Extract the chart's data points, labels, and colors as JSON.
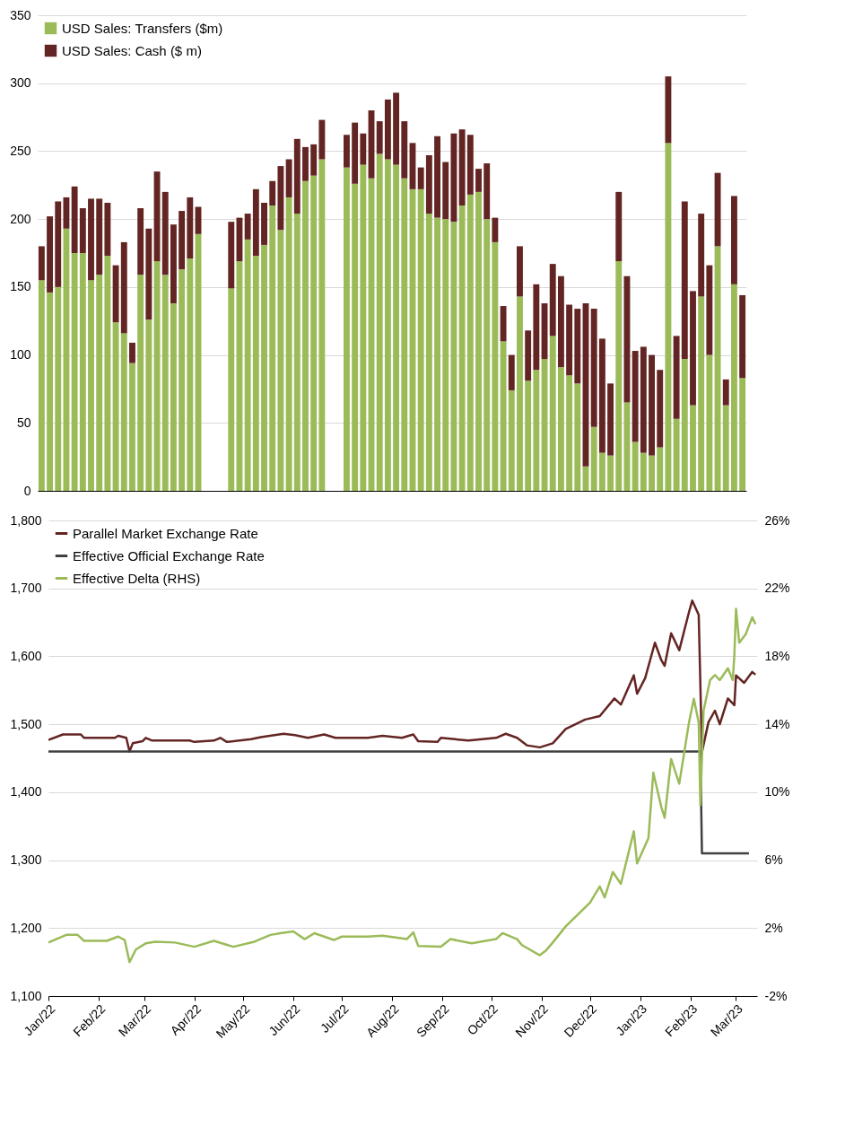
{
  "chart_data": [
    {
      "type": "bar",
      "stacked": true,
      "legend": "top left",
      "grid": "y",
      "ylim": [
        0,
        350
      ],
      "yticks": [
        0,
        50,
        100,
        150,
        200,
        250,
        300,
        350
      ],
      "categories": [
        null,
        null,
        null,
        null,
        null,
        null,
        null,
        null,
        null,
        null,
        null,
        null,
        null,
        null,
        null,
        null,
        null,
        null,
        null,
        null,
        null,
        null,
        null,
        null,
        null,
        null,
        null,
        null,
        null,
        null,
        null,
        null,
        null,
        null,
        null,
        null,
        null,
        null,
        null,
        null,
        null,
        null,
        null,
        null,
        null,
        null,
        null,
        null,
        null,
        null,
        null,
        null,
        null,
        null,
        null,
        null,
        null,
        null,
        null,
        null,
        null,
        null,
        null,
        null,
        null,
        null,
        null,
        null,
        null,
        null,
        null,
        null,
        null,
        null,
        null,
        null,
        null,
        null,
        null,
        null,
        null,
        null,
        null,
        null,
        null,
        null
      ],
      "series": [
        {
          "name": "USD Sales: Transfers ($m)",
          "color": "#9bbb59",
          "values": [
            155,
            146,
            150,
            193,
            175,
            175,
            155,
            159,
            173,
            124,
            116,
            94,
            159,
            126,
            169,
            159,
            138,
            163,
            171,
            189,
            null,
            null,
            null,
            149,
            169,
            185,
            173,
            181,
            210,
            192,
            216,
            204,
            228,
            232,
            244,
            null,
            null,
            238,
            226,
            240,
            230,
            248,
            244,
            240,
            230,
            222,
            222,
            204,
            201,
            200,
            198,
            210,
            218,
            220,
            200,
            183,
            110,
            74,
            143,
            81,
            89,
            97,
            114,
            91,
            85,
            79,
            18,
            47,
            28,
            26,
            169,
            65,
            36,
            28,
            26,
            32,
            256,
            53,
            97,
            63,
            143,
            100,
            180,
            63,
            152,
            83
          ]
        },
        {
          "name": "USD Sales: Cash ($ m)",
          "color": "#632523",
          "values": [
            25,
            56,
            63,
            23,
            49,
            33,
            60,
            56,
            39,
            42,
            67,
            15,
            49,
            67,
            66,
            61,
            58,
            43,
            45,
            20,
            null,
            null,
            null,
            49,
            32,
            19,
            49,
            31,
            18,
            47,
            28,
            55,
            25,
            23,
            29,
            null,
            null,
            24,
            45,
            23,
            50,
            24,
            44,
            53,
            42,
            34,
            16,
            43,
            60,
            42,
            65,
            56,
            44,
            17,
            41,
            18,
            26,
            26,
            37,
            37,
            63,
            41,
            53,
            67,
            52,
            55,
            120,
            87,
            84,
            53,
            51,
            93,
            67,
            78,
            74,
            57,
            49,
            61,
            116,
            84,
            61,
            66,
            54,
            19,
            65,
            61
          ]
        }
      ]
    },
    {
      "type": "line",
      "legend": "top left",
      "grid": "y",
      "xlim": [
        "2022-01-01",
        "2023-03-14"
      ],
      "xticks": [
        {
          "value": "2022-01-01",
          "label": "Jan/22"
        },
        {
          "value": "2022-02-01",
          "label": "Feb/22"
        },
        {
          "value": "2022-03-01",
          "label": "Mar/22"
        },
        {
          "value": "2022-04-01",
          "label": "Apr/22"
        },
        {
          "value": "2022-05-01",
          "label": "May/22"
        },
        {
          "value": "2022-06-01",
          "label": "Jun/22"
        },
        {
          "value": "2022-07-01",
          "label": "Jul/22"
        },
        {
          "value": "2022-08-01",
          "label": "Aug/22"
        },
        {
          "value": "2022-09-01",
          "label": "Sep/22"
        },
        {
          "value": "2022-10-01",
          "label": "Oct/22"
        },
        {
          "value": "2022-11-01",
          "label": "Nov/22"
        },
        {
          "value": "2022-12-01",
          "label": "Dec/22"
        },
        {
          "value": "2023-01-01",
          "label": "Jan/23"
        },
        {
          "value": "2023-02-01",
          "label": "Feb/23"
        },
        {
          "value": "2023-03-01",
          "label": "Mar/23"
        }
      ],
      "ylim": [
        1100,
        1800
      ],
      "yticks": [
        {
          "value": 1100,
          "label": "1,100"
        },
        {
          "value": 1200,
          "label": "1,200"
        },
        {
          "value": 1300,
          "label": "1,300"
        },
        {
          "value": 1400,
          "label": "1,400"
        },
        {
          "value": 1500,
          "label": "1,500"
        },
        {
          "value": 1600,
          "label": "1,600"
        },
        {
          "value": 1700,
          "label": "1,700"
        },
        {
          "value": 1800,
          "label": "1,800"
        }
      ],
      "y2lim": [
        -2,
        26
      ],
      "y2ticks": [
        {
          "value": -2,
          "label": "-2%"
        },
        {
          "value": 2,
          "label": "2%"
        },
        {
          "value": 6,
          "label": "6%"
        },
        {
          "value": 10,
          "label": "10%"
        },
        {
          "value": 14,
          "label": "14%"
        },
        {
          "value": 18,
          "label": "18%"
        },
        {
          "value": 22,
          "label": "22%"
        },
        {
          "value": 26,
          "label": "26%"
        }
      ],
      "series": [
        {
          "name": "Parallel Market Exchange Rate",
          "color": "#632523",
          "x": [
            "2022-01-01",
            "2022-01-10",
            "2022-01-21",
            "2022-01-23",
            "2022-02-11",
            "2022-02-13",
            "2022-02-18",
            "2022-02-20",
            "2022-02-22",
            "2022-02-28",
            "2022-03-02",
            "2022-03-06",
            "2022-03-29",
            "2022-04-01",
            "2022-04-13",
            "2022-04-17",
            "2022-04-21",
            "2022-05-06",
            "2022-05-12",
            "2022-05-26",
            "2022-06-02",
            "2022-06-10",
            "2022-06-20",
            "2022-06-27",
            "2022-07-17",
            "2022-07-26",
            "2022-08-07",
            "2022-08-14",
            "2022-08-17",
            "2022-08-29",
            "2022-08-31",
            "2022-09-17",
            "2022-10-04",
            "2022-10-10",
            "2022-10-17",
            "2022-10-23",
            "2022-10-31",
            "2022-11-08",
            "2022-11-16",
            "2022-11-28",
            "2022-12-07",
            "2022-12-16",
            "2022-12-20",
            "2022-12-28",
            "2022-12-30",
            "2023-01-04",
            "2023-01-10",
            "2023-01-14",
            "2023-01-16",
            "2023-01-20",
            "2023-01-25",
            "2023-01-31",
            "2023-02-02",
            "2023-02-06",
            "2023-02-08",
            "2023-02-12",
            "2023-02-16",
            "2023-02-19",
            "2023-02-24",
            "2023-02-28",
            "2023-03-01",
            "2023-03-06",
            "2023-03-11",
            "2023-03-13"
          ],
          "values": [
            1477,
            1485,
            1485,
            1480,
            1480,
            1483,
            1480,
            1460,
            1472,
            1475,
            1480,
            1476,
            1476,
            1474,
            1476,
            1480,
            1474,
            1478,
            1481,
            1486,
            1484,
            1480,
            1485,
            1480,
            1480,
            1483,
            1480,
            1485,
            1475,
            1474,
            1480,
            1476,
            1480,
            1486,
            1480,
            1469,
            1466,
            1472,
            1493,
            1507,
            1512,
            1538,
            1529,
            1572,
            1545,
            1568,
            1620,
            1594,
            1586,
            1634,
            1609,
            1665,
            1682,
            1661,
            1459,
            1503,
            1520,
            1500,
            1538,
            1528,
            1572,
            1561,
            1577,
            1573
          ]
        },
        {
          "name": "Effective Official Exchange Rate",
          "color": "#404040",
          "x": [
            "2022-01-01",
            "2023-02-07",
            "2023-02-08",
            "2023-03-09"
          ],
          "values": [
            1460,
            1460,
            1310,
            1310
          ]
        },
        {
          "name": "Effective Delta (RHS)",
          "color": "#9bbb59",
          "axis": "y2",
          "x": [
            "2022-01-01",
            "2022-01-12",
            "2022-01-19",
            "2022-01-23",
            "2022-02-06",
            "2022-02-13",
            "2022-02-17",
            "2022-02-20",
            "2022-02-24",
            "2022-03-02",
            "2022-03-08",
            "2022-03-20",
            "2022-04-01",
            "2022-04-13",
            "2022-04-25",
            "2022-05-08",
            "2022-05-18",
            "2022-05-24",
            "2022-06-01",
            "2022-06-08",
            "2022-06-14",
            "2022-06-26",
            "2022-07-01",
            "2022-07-17",
            "2022-07-26",
            "2022-08-10",
            "2022-08-14",
            "2022-08-17",
            "2022-08-31",
            "2022-09-06",
            "2022-09-19",
            "2022-10-04",
            "2022-10-08",
            "2022-10-17",
            "2022-10-20",
            "2022-10-31",
            "2022-11-04",
            "2022-11-08",
            "2022-11-16",
            "2022-12-01",
            "2022-12-07",
            "2022-12-10",
            "2022-12-15",
            "2022-12-20",
            "2022-12-28",
            "2022-12-30",
            "2023-01-06",
            "2023-01-09",
            "2023-01-14",
            "2023-01-16",
            "2023-01-20",
            "2023-01-25",
            "2023-01-31",
            "2023-02-03",
            "2023-02-06",
            "2023-02-07",
            "2023-02-09",
            "2023-02-13",
            "2023-02-16",
            "2023-02-19",
            "2023-02-24",
            "2023-02-27",
            "2023-02-28",
            "2023-03-01",
            "2023-03-03",
            "2023-03-07",
            "2023-03-11",
            "2023-03-13"
          ],
          "values": [
            1.15,
            1.6,
            1.6,
            1.25,
            1.25,
            1.5,
            1.3,
            0.0,
            0.75,
            1.1,
            1.2,
            1.15,
            0.9,
            1.25,
            0.9,
            1.2,
            1.6,
            1.7,
            1.8,
            1.35,
            1.7,
            1.3,
            1.5,
            1.5,
            1.55,
            1.35,
            1.75,
            0.95,
            0.9,
            1.35,
            1.1,
            1.35,
            1.7,
            1.35,
            1.0,
            0.4,
            0.7,
            1.15,
            2.1,
            3.5,
            4.45,
            3.8,
            5.3,
            4.6,
            7.7,
            5.8,
            7.3,
            11.15,
            9.1,
            8.5,
            11.95,
            10.5,
            14.1,
            15.5,
            14.1,
            9.25,
            14.8,
            16.6,
            16.9,
            16.6,
            17.3,
            16.6,
            18.1,
            20.8,
            18.8,
            19.3,
            20.3,
            19.9
          ]
        }
      ]
    }
  ]
}
